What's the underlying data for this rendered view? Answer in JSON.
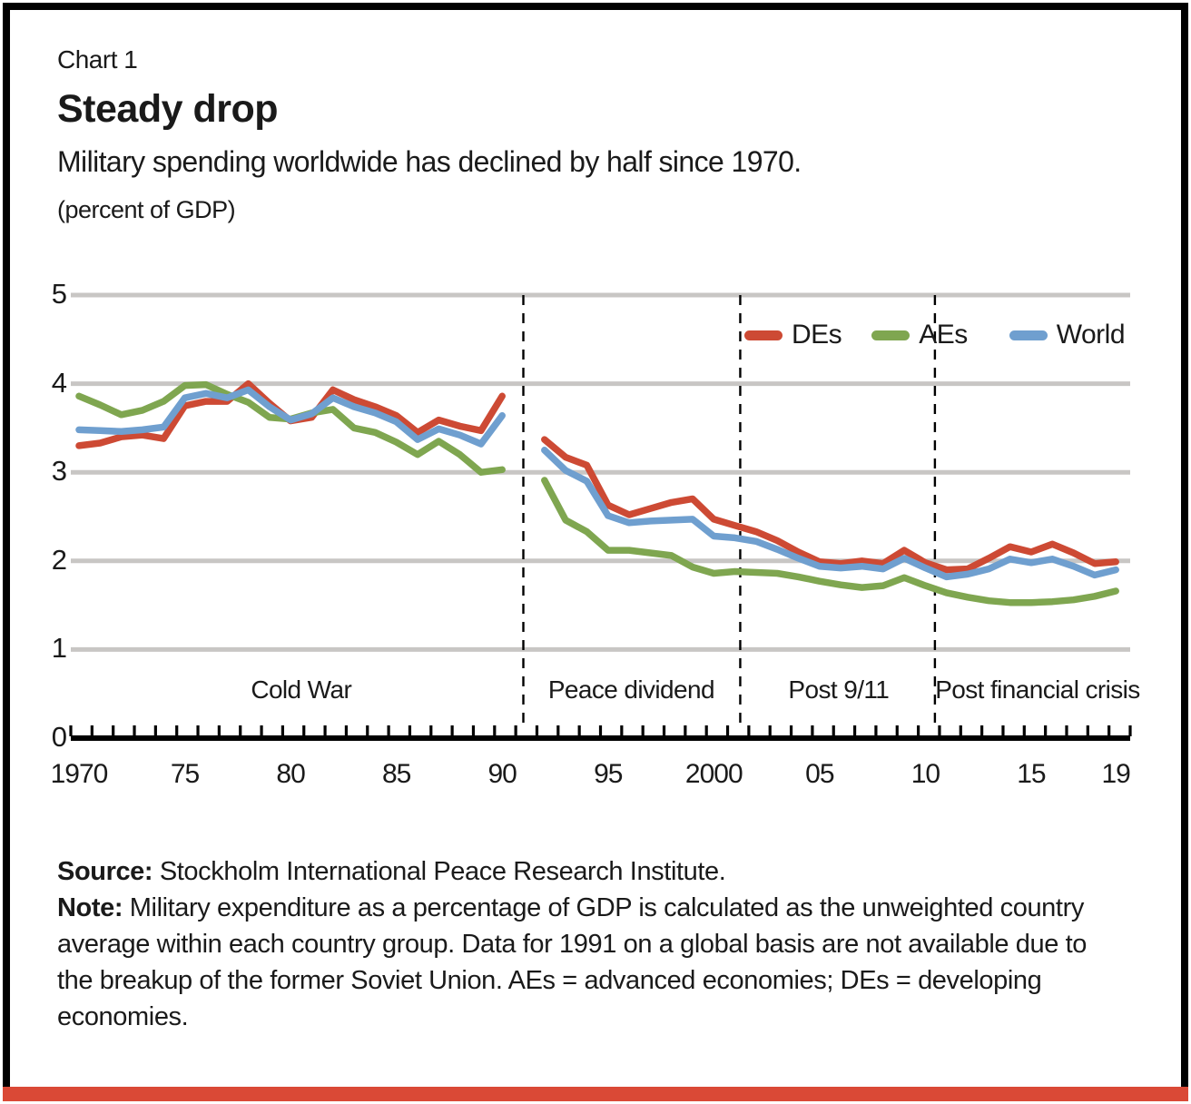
{
  "frame": {
    "border_color": "#000000",
    "bottom_bar_color": "#da4936"
  },
  "header": {
    "kicker": "Chart 1",
    "title": "Steady drop",
    "subtitle": "Military spending worldwide has declined by half since 1970.",
    "unit_label": "(percent of GDP)"
  },
  "chart_data": {
    "type": "line",
    "title": "Steady drop",
    "unit": "percent of GDP",
    "x_range": [
      1970,
      2019
    ],
    "ylim": [
      0,
      5
    ],
    "yticks": [
      0,
      1,
      2,
      3,
      4,
      5
    ],
    "grid": true,
    "gridline_color": "#c8c6c4",
    "axis_color": "#000000",
    "legend_position": "top-right-inside",
    "x": [
      1970,
      1971,
      1972,
      1973,
      1974,
      1975,
      1976,
      1977,
      1978,
      1979,
      1980,
      1981,
      1982,
      1983,
      1984,
      1985,
      1986,
      1987,
      1988,
      1989,
      1990,
      1991,
      1992,
      1993,
      1994,
      1995,
      1996,
      1997,
      1998,
      1999,
      2000,
      2001,
      2002,
      2003,
      2004,
      2005,
      2006,
      2007,
      2008,
      2009,
      2010,
      2011,
      2012,
      2013,
      2014,
      2015,
      2016,
      2017,
      2018,
      2019
    ],
    "missing_data_year": 1991,
    "series": [
      {
        "name": "DEs",
        "color": "#cd4a34",
        "values": [
          3.3,
          3.33,
          3.4,
          3.42,
          3.38,
          3.75,
          3.8,
          3.8,
          4.0,
          3.78,
          3.58,
          3.62,
          3.93,
          3.82,
          3.74,
          3.64,
          3.45,
          3.59,
          3.52,
          3.47,
          3.86,
          null,
          3.37,
          3.17,
          3.08,
          2.63,
          2.52,
          2.59,
          2.66,
          2.7,
          2.47,
          2.4,
          2.33,
          2.23,
          2.1,
          1.99,
          1.97,
          2.0,
          1.97,
          2.12,
          1.98,
          1.9,
          1.91,
          2.03,
          2.16,
          2.1,
          2.19,
          2.09,
          1.97,
          1.99
        ]
      },
      {
        "name": "AEs",
        "color": "#7fa650",
        "values": [
          3.86,
          3.76,
          3.65,
          3.7,
          3.8,
          3.98,
          3.99,
          3.88,
          3.79,
          3.62,
          3.6,
          3.67,
          3.71,
          3.5,
          3.45,
          3.34,
          3.2,
          3.35,
          3.2,
          3.0,
          3.03,
          null,
          2.91,
          2.46,
          2.33,
          2.12,
          2.12,
          2.09,
          2.06,
          1.93,
          1.86,
          1.88,
          1.87,
          1.86,
          1.82,
          1.77,
          1.73,
          1.7,
          1.72,
          1.81,
          1.72,
          1.64,
          1.59,
          1.55,
          1.53,
          1.53,
          1.54,
          1.56,
          1.6,
          1.66
        ]
      },
      {
        "name": "World",
        "color": "#6f9fcf",
        "values": [
          3.48,
          3.47,
          3.46,
          3.48,
          3.51,
          3.84,
          3.89,
          3.84,
          3.93,
          3.74,
          3.59,
          3.66,
          3.84,
          3.74,
          3.67,
          3.57,
          3.37,
          3.49,
          3.42,
          3.32,
          3.64,
          null,
          3.25,
          3.02,
          2.9,
          2.51,
          2.43,
          2.45,
          2.46,
          2.47,
          2.28,
          2.26,
          2.22,
          2.13,
          2.03,
          1.94,
          1.92,
          1.94,
          1.91,
          2.03,
          1.92,
          1.82,
          1.85,
          1.91,
          2.02,
          1.98,
          2.02,
          1.94,
          1.84,
          1.9
        ]
      }
    ],
    "xtick_labels": [
      {
        "year": 1970,
        "label": "1970"
      },
      {
        "year": 1975,
        "label": "75"
      },
      {
        "year": 1980,
        "label": "80"
      },
      {
        "year": 1985,
        "label": "85"
      },
      {
        "year": 1990,
        "label": "90"
      },
      {
        "year": 1995,
        "label": "95"
      },
      {
        "year": 2000,
        "label": "2000"
      },
      {
        "year": 2005,
        "label": "05"
      },
      {
        "year": 2010,
        "label": "10"
      },
      {
        "year": 2015,
        "label": "15"
      },
      {
        "year": 2019,
        "label": "19"
      }
    ],
    "era_dividers": [
      {
        "year": 1991
      },
      {
        "year": 2001.25
      },
      {
        "year": 2010.45
      }
    ],
    "era_labels": [
      {
        "label": "Cold War",
        "year": 1980.5
      },
      {
        "label": "Peace dividend",
        "year": 1996.1
      },
      {
        "label": "Post 9/11",
        "year": 2005.9
      },
      {
        "label": "Post financial crisis",
        "year": 2015.3
      }
    ]
  },
  "footer": {
    "source_label": "Source:",
    "source_text": " Stockholm International Peace Research Institute.",
    "note_label": "Note:",
    "note_text": " Military expenditure as a percentage of GDP is calculated as the unweighted country average within each country group. Data for 1991 on a global basis are not available due to the breakup of the former Soviet Union. AEs = advanced economies; DEs = developing economies."
  }
}
